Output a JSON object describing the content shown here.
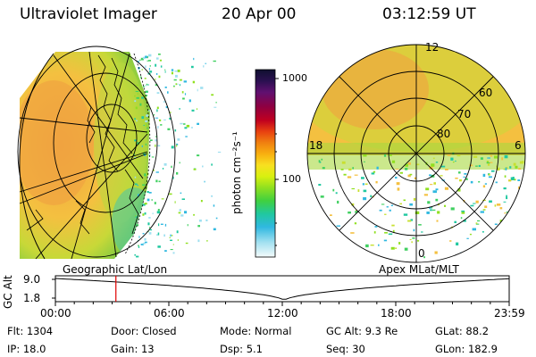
{
  "header": {
    "instrument": "Ultraviolet Imager",
    "date": "20 Apr 00",
    "time": "03:12:59 UT"
  },
  "geo_panel": {
    "label": "Geographic Lat/Lon"
  },
  "apex_panel": {
    "label": "Apex MLat/MLT",
    "mlt_labels": [
      "12",
      "18",
      "6",
      "0"
    ],
    "lat_labels": [
      "60",
      "70",
      "80"
    ]
  },
  "colorbar": {
    "unit_label": "photon cm⁻²s⁻¹",
    "ticks": [
      "1000",
      "100"
    ],
    "colors": [
      "#101030",
      "#2a1050",
      "#601070",
      "#900040",
      "#c00020",
      "#e84010",
      "#f08010",
      "#f8b010",
      "#f8e020",
      "#d8f010",
      "#90e020",
      "#40d040",
      "#20c8a0",
      "#30b8e0",
      "#a0e0f0",
      "#e8f8f8"
    ]
  },
  "timeline": {
    "axis_label": "GC Alt",
    "y_ticks": [
      "9.0",
      "1.8"
    ],
    "x_ticks": [
      "00:00",
      "06:00",
      "12:00",
      "18:00",
      "23:59"
    ],
    "marker_hour": 3.2,
    "marker_color": "#e00000"
  },
  "info": {
    "row1": [
      {
        "label": "Flt:",
        "value": "1304"
      },
      {
        "label": "Door:",
        "value": "Closed"
      },
      {
        "label": "Mode:",
        "value": "Normal"
      },
      {
        "label": "GC Alt:",
        "value": "9.3 Re"
      },
      {
        "label": "GLat:",
        "value": "88.2"
      }
    ],
    "row2": [
      {
        "label": "IP:",
        "value": "18.0"
      },
      {
        "label": "Gain:",
        "value": "13"
      },
      {
        "label": "Dsp:",
        "value": "5.1"
      },
      {
        "label": "Seq:",
        "value": "30"
      },
      {
        "label": "GLon:",
        "value": "182.9"
      }
    ]
  }
}
